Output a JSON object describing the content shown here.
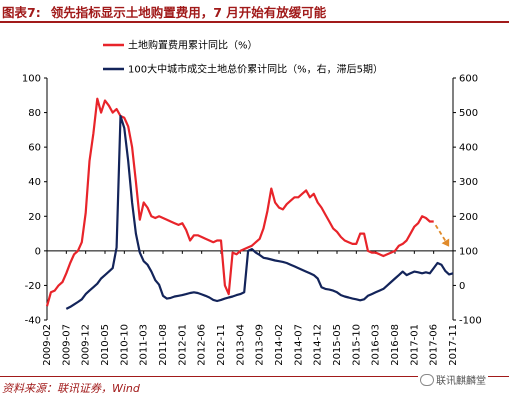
{
  "title": {
    "figure_no": "图表7:",
    "text": "领先指标显示土地购置费用，7 月开始有放缓可能"
  },
  "footer": {
    "source": "资料来源：联讯证券，Wind"
  },
  "watermark": {
    "text": "联讯麒麟堂"
  },
  "colors": {
    "title": "#a11a1a",
    "series_red": "#e8242a",
    "series_navy": "#13245a",
    "arrow": "#e08a2a"
  },
  "chart_data": {
    "type": "line",
    "title": "",
    "xlabel": "",
    "ylabel_left": "",
    "ylabel_right": "",
    "left_axis": {
      "min": -40,
      "max": 100,
      "ticks": [
        -40,
        -20,
        0,
        20,
        40,
        60,
        80,
        100
      ]
    },
    "right_axis": {
      "min": -100,
      "max": 600,
      "ticks": [
        -100,
        0,
        100,
        200,
        300,
        400,
        500,
        600
      ]
    },
    "x_ticks": [
      "2009-02",
      "2009-07",
      "2009-12",
      "2010-05",
      "2010-10",
      "2011-03",
      "2011-08",
      "2012-01",
      "2012-06",
      "2012-11",
      "2013-04",
      "2013-09",
      "2014-02",
      "2014-07",
      "2014-12",
      "2015-05",
      "2015-10",
      "2016-03",
      "2016-08",
      "2017-01",
      "2017-06",
      "2017-11"
    ],
    "x_domain": [
      "2009-02",
      "2017-11"
    ],
    "legend_position": "top",
    "grid": false,
    "series": [
      {
        "name": "土地购置费用累计同比（%）",
        "axis": "left",
        "color": "#e8242a",
        "points": [
          [
            "2009-02",
            -32
          ],
          [
            "2009-03",
            -24
          ],
          [
            "2009-04",
            -23
          ],
          [
            "2009-05",
            -20
          ],
          [
            "2009-06",
            -18
          ],
          [
            "2009-07",
            -13
          ],
          [
            "2009-08",
            -7
          ],
          [
            "2009-09",
            -2
          ],
          [
            "2009-10",
            0
          ],
          [
            "2009-11",
            5
          ],
          [
            "2009-12",
            22
          ],
          [
            "2010-01",
            52
          ],
          [
            "2010-02",
            68
          ],
          [
            "2010-03",
            88
          ],
          [
            "2010-04",
            80
          ],
          [
            "2010-05",
            87
          ],
          [
            "2010-06",
            84
          ],
          [
            "2010-07",
            80
          ],
          [
            "2010-08",
            82
          ],
          [
            "2010-09",
            78
          ],
          [
            "2010-10",
            77
          ],
          [
            "2010-11",
            72
          ],
          [
            "2010-12",
            60
          ],
          [
            "2011-01",
            40
          ],
          [
            "2011-02",
            18
          ],
          [
            "2011-03",
            28
          ],
          [
            "2011-04",
            25
          ],
          [
            "2011-05",
            20
          ],
          [
            "2011-06",
            19
          ],
          [
            "2011-07",
            20
          ],
          [
            "2011-08",
            19
          ],
          [
            "2011-09",
            18
          ],
          [
            "2011-10",
            17
          ],
          [
            "2011-11",
            16
          ],
          [
            "2011-12",
            15
          ],
          [
            "2012-01",
            16
          ],
          [
            "2012-02",
            12
          ],
          [
            "2012-03",
            6
          ],
          [
            "2012-04",
            9
          ],
          [
            "2012-05",
            9
          ],
          [
            "2012-06",
            8
          ],
          [
            "2012-07",
            7
          ],
          [
            "2012-08",
            6
          ],
          [
            "2012-09",
            5
          ],
          [
            "2012-10",
            6
          ],
          [
            "2012-11",
            6
          ],
          [
            "2012-12",
            -20
          ],
          [
            "2013-01",
            -25
          ],
          [
            "2013-02",
            -1
          ],
          [
            "2013-03",
            -2
          ],
          [
            "2013-04",
            0
          ],
          [
            "2013-05",
            1
          ],
          [
            "2013-06",
            2
          ],
          [
            "2013-07",
            3
          ],
          [
            "2013-08",
            5
          ],
          [
            "2013-09",
            7
          ],
          [
            "2013-10",
            13
          ],
          [
            "2013-11",
            23
          ],
          [
            "2013-12",
            36
          ],
          [
            "2014-01",
            28
          ],
          [
            "2014-02",
            25
          ],
          [
            "2014-03",
            24
          ],
          [
            "2014-04",
            27
          ],
          [
            "2014-05",
            29
          ],
          [
            "2014-06",
            31
          ],
          [
            "2014-07",
            31
          ],
          [
            "2014-08",
            33
          ],
          [
            "2014-09",
            35
          ],
          [
            "2014-10",
            31
          ],
          [
            "2014-11",
            33
          ],
          [
            "2014-12",
            28
          ],
          [
            "2015-01",
            25
          ],
          [
            "2015-02",
            21
          ],
          [
            "2015-03",
            17
          ],
          [
            "2015-04",
            13
          ],
          [
            "2015-05",
            11
          ],
          [
            "2015-06",
            8
          ],
          [
            "2015-07",
            6
          ],
          [
            "2015-08",
            5
          ],
          [
            "2015-09",
            4
          ],
          [
            "2015-10",
            4
          ],
          [
            "2015-11",
            10
          ],
          [
            "2015-12",
            10
          ],
          [
            "2016-01",
            0
          ],
          [
            "2016-02",
            -1
          ],
          [
            "2016-03",
            -1
          ],
          [
            "2016-04",
            -2
          ],
          [
            "2016-05",
            -3
          ],
          [
            "2016-06",
            -2
          ],
          [
            "2016-07",
            -1
          ],
          [
            "2016-08",
            0
          ],
          [
            "2016-09",
            3
          ],
          [
            "2016-10",
            4
          ],
          [
            "2016-11",
            6
          ],
          [
            "2016-12",
            10
          ],
          [
            "2017-01",
            14
          ],
          [
            "2017-02",
            16
          ],
          [
            "2017-03",
            20
          ],
          [
            "2017-04",
            19
          ],
          [
            "2017-05",
            17
          ],
          [
            "2017-06",
            17
          ]
        ]
      },
      {
        "name": "100大中城市成交土地总价累计同比（%，右，滞后5期）",
        "axis": "right",
        "color": "#13245a",
        "points": [
          [
            "2009-07",
            -68
          ],
          [
            "2009-08",
            -62
          ],
          [
            "2009-09",
            -55
          ],
          [
            "2009-10",
            -48
          ],
          [
            "2009-11",
            -40
          ],
          [
            "2009-12",
            -25
          ],
          [
            "2010-01",
            -15
          ],
          [
            "2010-02",
            -5
          ],
          [
            "2010-03",
            5
          ],
          [
            "2010-04",
            20
          ],
          [
            "2010-05",
            30
          ],
          [
            "2010-06",
            40
          ],
          [
            "2010-07",
            50
          ],
          [
            "2010-08",
            110
          ],
          [
            "2010-09",
            490
          ],
          [
            "2010-10",
            455
          ],
          [
            "2010-11",
            360
          ],
          [
            "2010-12",
            240
          ],
          [
            "2011-01",
            150
          ],
          [
            "2011-02",
            95
          ],
          [
            "2011-03",
            70
          ],
          [
            "2011-04",
            60
          ],
          [
            "2011-05",
            40
          ],
          [
            "2011-06",
            15
          ],
          [
            "2011-07",
            2
          ],
          [
            "2011-08",
            -30
          ],
          [
            "2011-09",
            -38
          ],
          [
            "2011-10",
            -36
          ],
          [
            "2011-11",
            -32
          ],
          [
            "2011-12",
            -30
          ],
          [
            "2012-01",
            -28
          ],
          [
            "2012-02",
            -25
          ],
          [
            "2012-03",
            -22
          ],
          [
            "2012-04",
            -20
          ],
          [
            "2012-05",
            -22
          ],
          [
            "2012-06",
            -26
          ],
          [
            "2012-07",
            -30
          ],
          [
            "2012-08",
            -35
          ],
          [
            "2012-09",
            -42
          ],
          [
            "2012-10",
            -45
          ],
          [
            "2012-11",
            -42
          ],
          [
            "2012-12",
            -38
          ],
          [
            "2013-01",
            -35
          ],
          [
            "2013-02",
            -32
          ],
          [
            "2013-03",
            -28
          ],
          [
            "2013-04",
            -25
          ],
          [
            "2013-05",
            -20
          ],
          [
            "2013-06",
            100
          ],
          [
            "2013-07",
            105
          ],
          [
            "2013-08",
            95
          ],
          [
            "2013-09",
            88
          ],
          [
            "2013-10",
            80
          ],
          [
            "2013-11",
            78
          ],
          [
            "2013-12",
            75
          ],
          [
            "2014-01",
            72
          ],
          [
            "2014-02",
            70
          ],
          [
            "2014-03",
            68
          ],
          [
            "2014-04",
            65
          ],
          [
            "2014-05",
            60
          ],
          [
            "2014-06",
            55
          ],
          [
            "2014-07",
            50
          ],
          [
            "2014-08",
            45
          ],
          [
            "2014-09",
            40
          ],
          [
            "2014-10",
            35
          ],
          [
            "2014-11",
            30
          ],
          [
            "2014-12",
            20
          ],
          [
            "2015-01",
            -5
          ],
          [
            "2015-02",
            -10
          ],
          [
            "2015-03",
            -12
          ],
          [
            "2015-04",
            -15
          ],
          [
            "2015-05",
            -20
          ],
          [
            "2015-06",
            -28
          ],
          [
            "2015-07",
            -32
          ],
          [
            "2015-08",
            -35
          ],
          [
            "2015-09",
            -38
          ],
          [
            "2015-10",
            -40
          ],
          [
            "2015-11",
            -43
          ],
          [
            "2015-12",
            -40
          ],
          [
            "2016-01",
            -30
          ],
          [
            "2016-02",
            -25
          ],
          [
            "2016-03",
            -20
          ],
          [
            "2016-04",
            -15
          ],
          [
            "2016-05",
            -10
          ],
          [
            "2016-06",
            0
          ],
          [
            "2016-07",
            10
          ],
          [
            "2016-08",
            20
          ],
          [
            "2016-09",
            30
          ],
          [
            "2016-10",
            40
          ],
          [
            "2016-11",
            30
          ],
          [
            "2016-12",
            35
          ],
          [
            "2017-01",
            40
          ],
          [
            "2017-02",
            38
          ],
          [
            "2017-03",
            35
          ],
          [
            "2017-04",
            38
          ],
          [
            "2017-05",
            35
          ],
          [
            "2017-06",
            50
          ],
          [
            "2017-07",
            65
          ],
          [
            "2017-08",
            60
          ],
          [
            "2017-09",
            42
          ],
          [
            "2017-10",
            32
          ],
          [
            "2017-11",
            35
          ]
        ]
      }
    ],
    "annotation": {
      "type": "dashed-arrow",
      "from": [
        "2017-06",
        16
      ],
      "to": [
        "2017-11",
        2
      ],
      "axis": "left",
      "color": "#e08a2a"
    }
  }
}
